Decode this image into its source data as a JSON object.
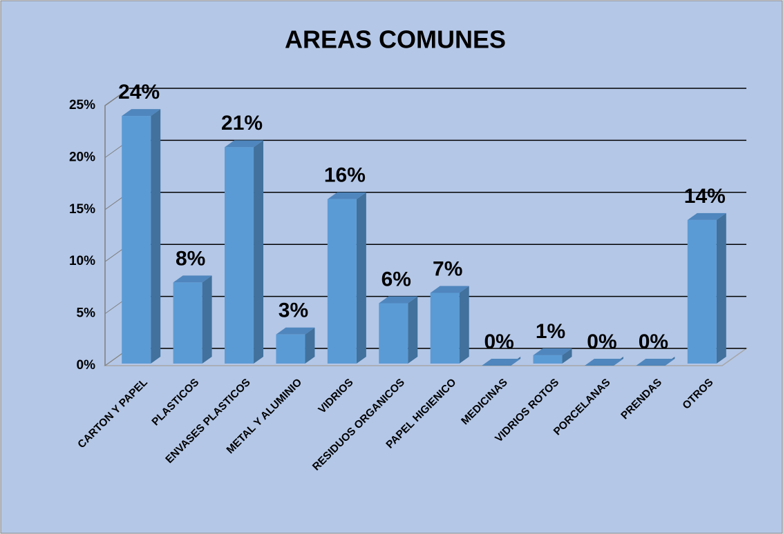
{
  "chart_data": {
    "type": "bar3d",
    "title": "AREAS COMUNES",
    "categories": [
      "CARTON Y PAPEL",
      "PLASTICOS",
      "ENVASES PLASTICOS",
      "METAL Y ALUMINIO",
      "VIDRIOS",
      "RESIDUOS ORGANICOS",
      "PAPEL HIGIENICO",
      "MEDICINAS",
      "VIDRIOS ROTOS",
      "PORCELANAS",
      "PRENDAS",
      "OTROS"
    ],
    "values": [
      24,
      8,
      21,
      3,
      16,
      6,
      7,
      0,
      1,
      0,
      0,
      14
    ],
    "value_labels": [
      "24%",
      "8%",
      "21%",
      "3%",
      "16%",
      "6%",
      "7%",
      "0%",
      "1%",
      "0%",
      "0%",
      "14%"
    ],
    "color": "#5b9bd5",
    "ylim": [
      0,
      25
    ],
    "yticks": [
      {
        "value": 0,
        "label": "0%"
      },
      {
        "value": 5,
        "label": "5%"
      },
      {
        "value": 10,
        "label": "10%"
      },
      {
        "value": 15,
        "label": "15%"
      },
      {
        "value": 20,
        "label": "20%"
      },
      {
        "value": 25,
        "label": "25%"
      }
    ],
    "grid": true
  }
}
